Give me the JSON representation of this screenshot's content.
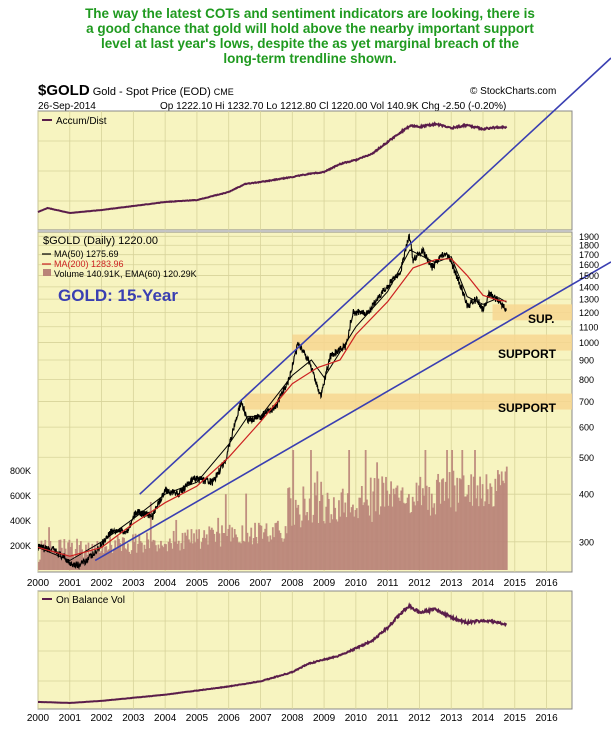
{
  "annotation": {
    "lines": [
      "The way the latest COTs and sentiment indicators are looking, there is",
      "a good chance that gold will hold above the nearby important support",
      "level at last  year's lows, despite the as yet marginal breach of the",
      "long-term trendline shown."
    ],
    "color": "#1f9a1f"
  },
  "header": {
    "symbol": "$GOLD",
    "description": "Gold - Spot Price (EOD)",
    "exchange": "CME",
    "watermark": "© StockCharts.com",
    "date": "26-Sep-2014",
    "quote": "Op 1222.10  Hi 1232.70  Lo 1212.80  Cl 1220.00  Vol 140.9K  Chg -2.50 (-0.20%)"
  },
  "accum_panel": {
    "label": "Accum/Dist"
  },
  "obv_panel": {
    "label": "On Balance Vol"
  },
  "price_legend": {
    "title": "$GOLD (Daily) 1220.00",
    "ma50": "MA(50) 1275.69",
    "ma200": "MA(200) 1283.96",
    "volume": "Volume 140.91K, EMA(60) 120.29K"
  },
  "chart_title": "GOLD: 15-Year",
  "zone_labels": {
    "sup": "SUP.",
    "support_1000": "SUPPORT",
    "support_700": "SUPPORT"
  },
  "colors": {
    "panel_bg": "#f7f4c0",
    "grid": "#d7d39a",
    "trendline": "#3a3fb2",
    "title": "#3a3fb2",
    "ma50": "#000000",
    "ma200": "#cc2222",
    "support_band": "#f7d690",
    "indicator": "#5a1d4a",
    "volume": "#b98479"
  },
  "chart_data": [
    {
      "type": "line",
      "name": "price",
      "x_ticks": [
        "2000",
        "2001",
        "2002",
        "2003",
        "2004",
        "2005",
        "2006",
        "2007",
        "2008",
        "2009",
        "2010",
        "2011",
        "2012",
        "2013",
        "2014",
        "2015",
        "2016"
      ],
      "y_ticks": [
        "1900",
        "1800",
        "1700",
        "1600",
        "1500",
        "1400",
        "1300",
        "1200",
        "1100",
        "1000",
        "900",
        "800",
        "700",
        "600",
        "500",
        "400",
        "300"
      ],
      "volume_ticks": [
        "800K",
        "600K",
        "400K",
        "200K"
      ],
      "log_scale": true,
      "ylim": [
        250,
        1950
      ],
      "xlim": [
        2000.0,
        2016.8
      ],
      "grid": true,
      "series": [
        {
          "name": "$GOLD (Daily)",
          "x": [
            2000.0,
            2000.5,
            2001.0,
            2001.3,
            2001.8,
            2002.3,
            2002.8,
            2003.1,
            2003.6,
            2004.0,
            2004.4,
            2004.9,
            2005.5,
            2005.9,
            2006.4,
            2006.6,
            2007.0,
            2007.5,
            2007.9,
            2008.2,
            2008.5,
            2008.9,
            2009.2,
            2009.7,
            2009.9,
            2010.4,
            2010.9,
            2011.4,
            2011.68,
            2011.8,
            2012.1,
            2012.4,
            2012.7,
            2012.9,
            2013.3,
            2013.5,
            2013.8,
            2014.0,
            2014.2,
            2014.5,
            2014.74
          ],
          "y": [
            290,
            285,
            265,
            260,
            280,
            320,
            320,
            360,
            350,
            410,
            400,
            440,
            430,
            490,
            700,
            620,
            640,
            680,
            800,
            1000,
            900,
            720,
            920,
            980,
            1200,
            1200,
            1380,
            1530,
            1900,
            1650,
            1740,
            1580,
            1700,
            1700,
            1400,
            1250,
            1300,
            1220,
            1340,
            1290,
            1220
          ]
        },
        {
          "name": "MA(50)",
          "x": [
            2000.0,
            2001.0,
            2002.0,
            2003.0,
            2004.0,
            2005.0,
            2006.0,
            2006.6,
            2007.0,
            2008.0,
            2008.6,
            2009.0,
            2010.0,
            2011.0,
            2011.7,
            2012.0,
            2012.5,
            2013.0,
            2013.5,
            2014.0,
            2014.5,
            2014.74
          ],
          "y": [
            290,
            268,
            300,
            345,
            400,
            430,
            540,
            640,
            640,
            820,
            900,
            810,
            1100,
            1360,
            1750,
            1700,
            1620,
            1680,
            1320,
            1260,
            1310,
            1276
          ]
        },
        {
          "name": "MA(200)",
          "x": [
            2000.0,
            2001.0,
            2002.0,
            2003.0,
            2004.0,
            2005.0,
            2006.0,
            2007.0,
            2008.0,
            2008.8,
            2009.5,
            2010.0,
            2011.0,
            2011.8,
            2012.5,
            2013.0,
            2013.5,
            2014.0,
            2014.5,
            2014.74
          ],
          "y": [
            290,
            275,
            290,
            335,
            380,
            420,
            500,
            620,
            780,
            860,
            900,
            1050,
            1280,
            1570,
            1650,
            1660,
            1500,
            1330,
            1290,
            1284
          ]
        }
      ],
      "support_levels": [
        1200,
        1000,
        700
      ],
      "ma50_last": 1275.69,
      "ma200_last": 1283.96,
      "volume_last": "140.91K",
      "volume_ema60": "120.29K"
    },
    {
      "type": "line",
      "name": "Accum/Dist",
      "x": [
        2000.0,
        2000.3,
        2001.0,
        2002.0,
        2003.0,
        2004.0,
        2005.0,
        2006.0,
        2006.5,
        2007.0,
        2008.0,
        2008.5,
        2009.0,
        2009.5,
        2010.0,
        2010.5,
        2011.0,
        2011.5,
        2011.7,
        2012.0,
        2012.5,
        2013.0,
        2013.5,
        2014.0,
        2014.5,
        2014.74
      ],
      "y": [
        10,
        14,
        9,
        12,
        16,
        20,
        22,
        30,
        38,
        40,
        45,
        48,
        50,
        58,
        62,
        68,
        80,
        92,
        96,
        95,
        98,
        94,
        97,
        93,
        95,
        94
      ]
    },
    {
      "type": "line",
      "name": "On Balance Vol",
      "x": [
        2000.0,
        2001.0,
        2002.0,
        2003.0,
        2004.0,
        2005.0,
        2006.0,
        2007.0,
        2008.0,
        2008.5,
        2009.0,
        2009.5,
        2010.0,
        2010.5,
        2011.0,
        2011.5,
        2011.7,
        2012.0,
        2012.5,
        2013.0,
        2013.5,
        2014.0,
        2014.5,
        2014.74
      ],
      "y": [
        3,
        2,
        4,
        7,
        10,
        14,
        18,
        23,
        32,
        40,
        44,
        48,
        55,
        62,
        75,
        92,
        96,
        90,
        93,
        85,
        80,
        82,
        80,
        78
      ]
    }
  ]
}
